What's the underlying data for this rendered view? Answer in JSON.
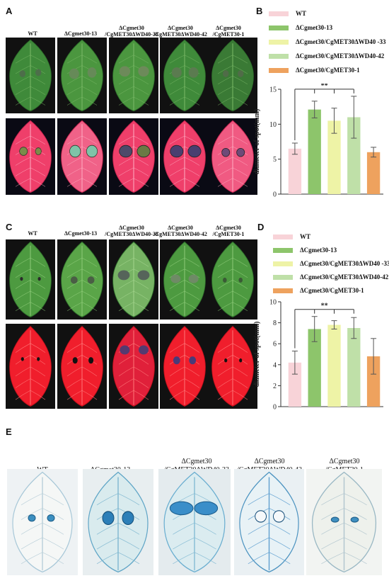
{
  "panels": {
    "A": "A",
    "B": "B",
    "C": "C",
    "D": "D",
    "E": "E"
  },
  "strains": [
    {
      "l1": "WT",
      "l2": ""
    },
    {
      "l1": "ΔCgmet30-13",
      "l2": ""
    },
    {
      "l1": "ΔCgmet30",
      "l2": "/CgMET30ΔWD40-33"
    },
    {
      "l1": "ΔCgmet30",
      "l2": "/CgMET30ΔWD40-42"
    },
    {
      "l1": "ΔCgmet30",
      "l2": "/CgMET30-1"
    }
  ],
  "legend": [
    {
      "label": "WT",
      "color": "#f8d3d8"
    },
    {
      "label": "ΔCgmet30-13",
      "color": "#8dc56b"
    },
    {
      "label": "ΔCgmet30/CgMET30ΔWD40 -33",
      "color": "#eef3a6"
    },
    {
      "label": "ΔCgmet30/CgMET30ΔWD40-42",
      "color": "#bfe0a8"
    },
    {
      "label": "ΔCgmet30/CgMET30-1",
      "color": "#eea25e"
    }
  ],
  "chart_data": [
    {
      "type": "bar",
      "panel": "B",
      "categories": [
        "WT",
        "ΔCgmet30-13",
        "ΔCgmet30/CgMET30ΔWD40-33",
        "ΔCgmet30/CgMET30ΔWD40-42",
        "ΔCgmet30/CgMET30-1"
      ],
      "values": [
        6.5,
        12.1,
        10.5,
        11.0,
        6.0
      ],
      "errors": [
        0.8,
        1.2,
        1.8,
        3.0,
        0.7
      ],
      "ylabel": "diameter of spot(mm)",
      "ylim": [
        0,
        15
      ],
      "yticks": [
        0,
        5,
        10,
        15
      ],
      "significance": "**"
    },
    {
      "type": "bar",
      "panel": "D",
      "categories": [
        "WT",
        "ΔCgmet30-13",
        "ΔCgmet30/CgMET30ΔWD40-33",
        "ΔCgmet30/CgMET30ΔWD40-42",
        "ΔCgmet30/CgMET30-1"
      ],
      "values": [
        4.2,
        7.4,
        7.8,
        7.5,
        4.8
      ],
      "errors": [
        1.1,
        1.2,
        0.4,
        1.0,
        1.7
      ],
      "ylabel": "diameter of spot(mm)",
      "ylim": [
        0,
        10
      ],
      "yticks": [
        0,
        2,
        4,
        6,
        8,
        10
      ],
      "significance": "**"
    }
  ]
}
